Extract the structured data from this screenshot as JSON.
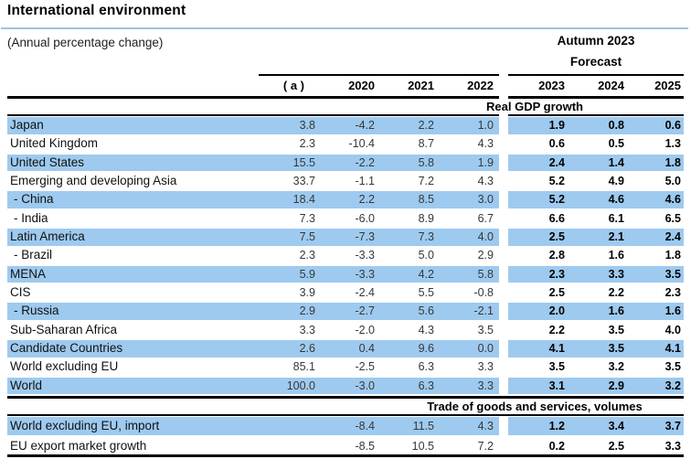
{
  "page": {
    "title": "International environment",
    "subtitle": "(Annual percentage change)",
    "forecast_block": {
      "season": "Autumn 2023",
      "label": "Forecast"
    }
  },
  "table": {
    "columns": [
      "( a )",
      "2020",
      "2021",
      "2022",
      "2023",
      "2024",
      "2025"
    ],
    "forecast_columns": [
      "2023",
      "2024",
      "2025"
    ],
    "sections": [
      {
        "title": "Real GDP growth",
        "rows": [
          {
            "label": "Japan",
            "indent": false,
            "highlight": true,
            "values": [
              "3.8",
              "-4.2",
              "2.2",
              "1.0",
              "1.9",
              "0.8",
              "0.6"
            ]
          },
          {
            "label": "United Kingdom",
            "indent": false,
            "highlight": false,
            "values": [
              "2.3",
              "-10.4",
              "8.7",
              "4.3",
              "0.6",
              "0.5",
              "1.3"
            ]
          },
          {
            "label": "United States",
            "indent": false,
            "highlight": true,
            "values": [
              "15.5",
              "-2.2",
              "5.8",
              "1.9",
              "2.4",
              "1.4",
              "1.8"
            ]
          },
          {
            "label": "Emerging and developing Asia",
            "indent": false,
            "highlight": false,
            "values": [
              "33.7",
              "-1.1",
              "7.2",
              "4.3",
              "5.2",
              "4.9",
              "5.0"
            ]
          },
          {
            "label": "- China",
            "indent": true,
            "highlight": true,
            "values": [
              "18.4",
              "2.2",
              "8.5",
              "3.0",
              "5.2",
              "4.6",
              "4.6"
            ]
          },
          {
            "label": "- India",
            "indent": true,
            "highlight": false,
            "values": [
              "7.3",
              "-6.0",
              "8.9",
              "6.7",
              "6.6",
              "6.1",
              "6.5"
            ]
          },
          {
            "label": "Latin America",
            "indent": false,
            "highlight": true,
            "values": [
              "7.5",
              "-7.3",
              "7.3",
              "4.0",
              "2.5",
              "2.1",
              "2.4"
            ]
          },
          {
            "label": "- Brazil",
            "indent": true,
            "highlight": false,
            "values": [
              "2.3",
              "-3.3",
              "5.0",
              "2.9",
              "2.8",
              "1.6",
              "1.8"
            ]
          },
          {
            "label": "MENA",
            "indent": false,
            "highlight": true,
            "values": [
              "5.9",
              "-3.3",
              "4.2",
              "5.8",
              "2.3",
              "3.3",
              "3.5"
            ]
          },
          {
            "label": "CIS",
            "indent": false,
            "highlight": false,
            "values": [
              "3.9",
              "-2.4",
              "5.5",
              "-0.8",
              "2.5",
              "2.2",
              "2.3"
            ]
          },
          {
            "label": "- Russia",
            "indent": true,
            "highlight": true,
            "values": [
              "2.9",
              "-2.7",
              "5.6",
              "-2.1",
              "2.0",
              "1.6",
              "1.6"
            ]
          },
          {
            "label": "Sub-Saharan Africa",
            "indent": false,
            "highlight": false,
            "values": [
              "3.3",
              "-2.0",
              "4.3",
              "3.5",
              "2.2",
              "3.5",
              "4.0"
            ]
          },
          {
            "label": "Candidate Countries",
            "indent": false,
            "highlight": true,
            "values": [
              "2.6",
              "0.4",
              "9.6",
              "0.0",
              "4.1",
              "3.5",
              "4.1"
            ]
          },
          {
            "label": "World excluding EU",
            "indent": false,
            "highlight": false,
            "values": [
              "85.1",
              "-2.5",
              "6.3",
              "3.3",
              "3.5",
              "3.2",
              "3.5"
            ]
          },
          {
            "label": "World",
            "indent": false,
            "highlight": true,
            "values": [
              "100.0",
              "-3.0",
              "6.3",
              "3.3",
              "3.1",
              "2.9",
              "3.2"
            ]
          }
        ]
      },
      {
        "title": "Trade of goods and services, volumes",
        "rows": [
          {
            "label": "World excluding EU, import",
            "indent": false,
            "highlight": true,
            "values": [
              "",
              "-8.4",
              "11.5",
              "4.3",
              "1.2",
              "3.4",
              "3.7"
            ]
          },
          {
            "label": "EU export market growth",
            "indent": false,
            "highlight": false,
            "values": [
              "",
              "-8.5",
              "10.5",
              "7.2",
              "0.2",
              "2.5",
              "3.3"
            ]
          }
        ]
      }
    ]
  },
  "colors": {
    "row_highlight": "#9ECAEF",
    "title_rule": "#9DC3E6",
    "rule": "#000000",
    "forecast_text": "#000000",
    "number_text": "#373737"
  }
}
